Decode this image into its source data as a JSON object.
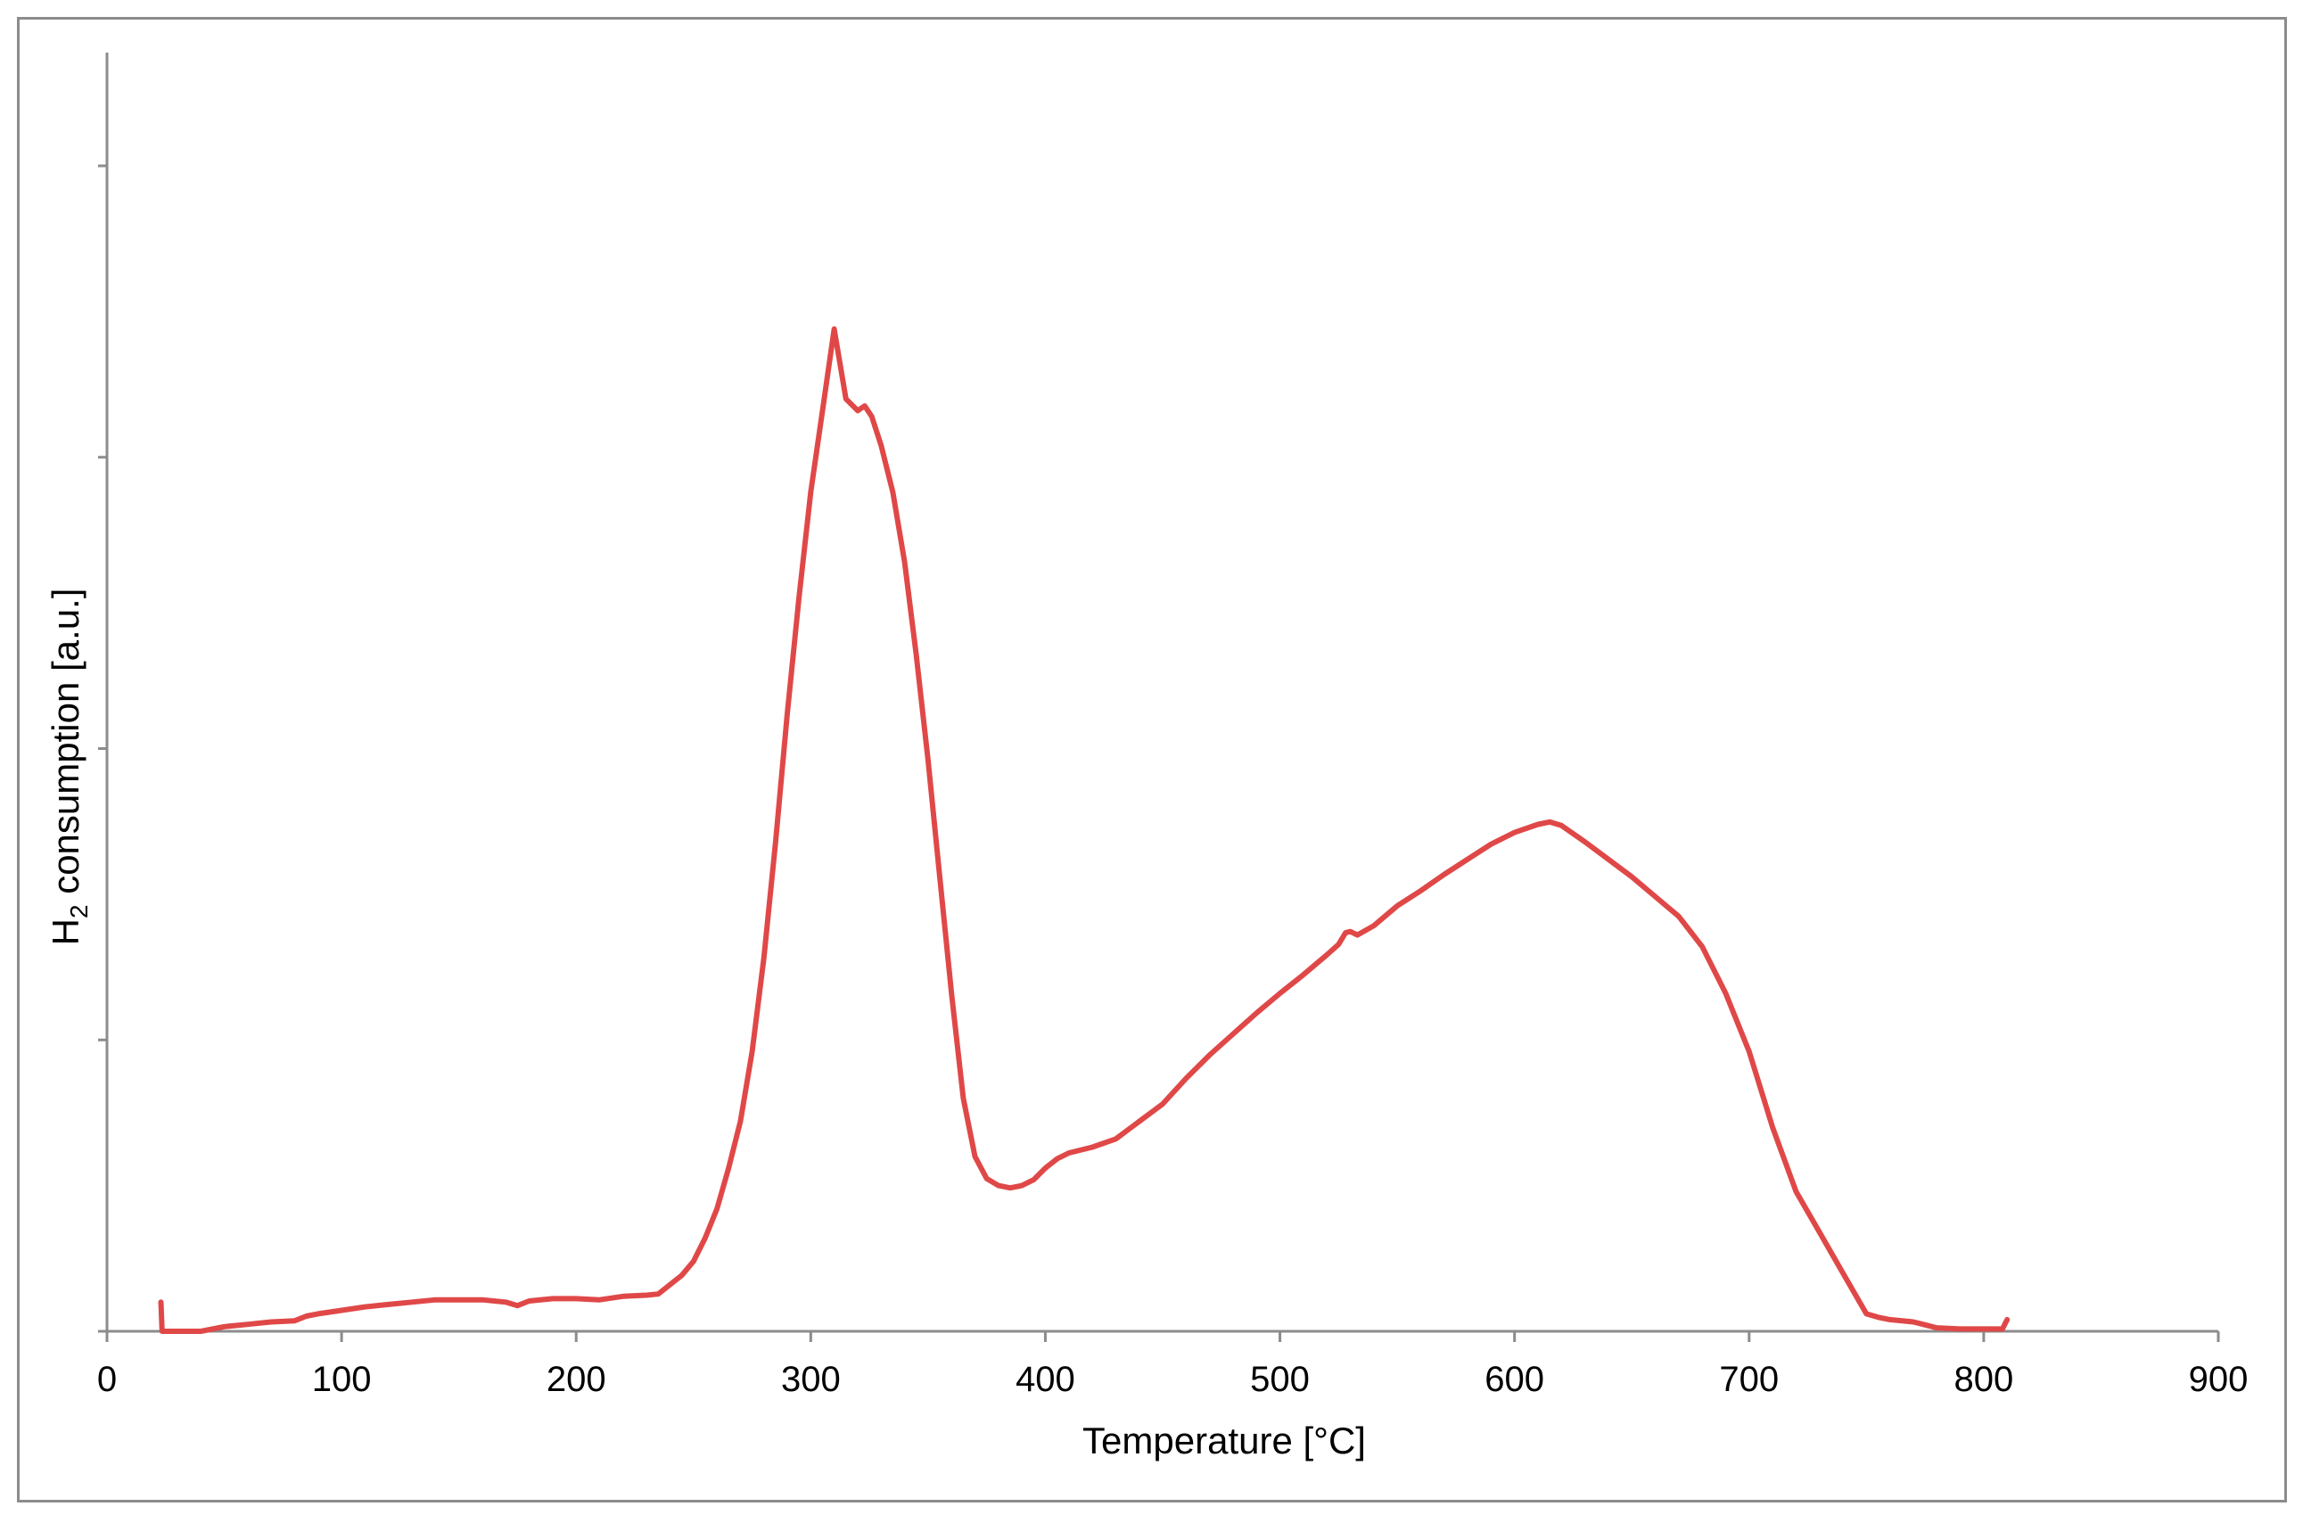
{
  "chart_data": {
    "type": "line",
    "title": "",
    "xlabel": "Temperature [°C]",
    "ylabel_main": "H",
    "ylabel_sub": "2",
    "ylabel_rest": " consumption [a.u.]",
    "xlim": [
      0,
      900
    ],
    "ylim": [
      0,
      1
    ],
    "xticks": [
      0,
      100,
      200,
      300,
      400,
      500,
      600,
      700,
      800,
      900
    ],
    "xtick_labels": [
      "0",
      "100",
      "200",
      "300",
      "400",
      "500",
      "600",
      "700",
      "800",
      "900"
    ],
    "yticks_count": 5,
    "ytick_labels_shown": false,
    "grid": false,
    "legend": "none",
    "series": [
      {
        "color": "#e04848",
        "x": [
          23,
          23.5,
          24,
          26,
          30,
          40,
          50,
          60,
          70,
          80,
          85,
          90,
          100,
          110,
          120,
          130,
          140,
          150,
          160,
          170,
          175,
          180,
          190,
          200,
          210,
          220,
          230,
          235,
          240,
          245,
          250,
          255,
          260,
          265,
          270,
          275,
          280,
          285,
          290,
          295,
          300,
          305,
          310,
          315,
          320,
          323,
          326,
          330,
          335,
          340,
          345,
          350,
          355,
          360,
          365,
          370,
          375,
          380,
          385,
          390,
          395,
          400,
          405,
          410,
          420,
          430,
          440,
          450,
          460,
          470,
          480,
          490,
          500,
          510,
          520,
          525,
          528,
          530,
          533,
          540,
          550,
          560,
          570,
          580,
          590,
          600,
          610,
          615,
          620,
          630,
          640,
          650,
          660,
          670,
          680,
          690,
          700,
          710,
          720,
          730,
          740,
          750,
          755,
          760,
          770,
          780,
          790,
          800,
          808,
          810
        ],
        "y": [
          0.025,
          0.0,
          0.0,
          0.0,
          0.0,
          0.0,
          0.004,
          0.006,
          0.008,
          0.009,
          0.013,
          0.015,
          0.018,
          0.021,
          0.023,
          0.025,
          0.027,
          0.027,
          0.027,
          0.025,
          0.022,
          0.026,
          0.028,
          0.028,
          0.027,
          0.03,
          0.031,
          0.032,
          0.04,
          0.048,
          0.06,
          0.08,
          0.105,
          0.14,
          0.18,
          0.24,
          0.32,
          0.42,
          0.53,
          0.63,
          0.72,
          0.79,
          0.86,
          0.8,
          0.79,
          0.794,
          0.785,
          0.76,
          0.72,
          0.66,
          0.58,
          0.49,
          0.39,
          0.29,
          0.2,
          0.15,
          0.131,
          0.125,
          0.123,
          0.125,
          0.13,
          0.14,
          0.148,
          0.153,
          0.158,
          0.165,
          0.18,
          0.195,
          0.217,
          0.237,
          0.255,
          0.273,
          0.29,
          0.306,
          0.323,
          0.332,
          0.342,
          0.343,
          0.34,
          0.348,
          0.365,
          0.378,
          0.392,
          0.405,
          0.418,
          0.428,
          0.435,
          0.437,
          0.434,
          0.42,
          0.405,
          0.39,
          0.373,
          0.356,
          0.33,
          0.29,
          0.24,
          0.175,
          0.12,
          0.085,
          0.05,
          0.015,
          0.012,
          0.01,
          0.008,
          0.003,
          0.002,
          0.002,
          0.002,
          0.01
        ]
      }
    ]
  }
}
